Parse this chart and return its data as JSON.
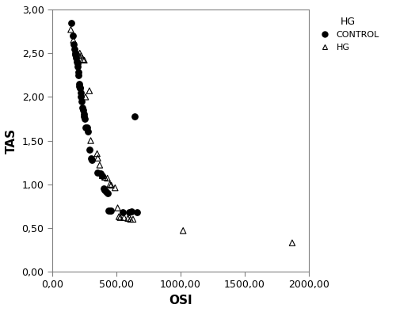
{
  "control_x": [
    150,
    160,
    165,
    175,
    180,
    182,
    185,
    190,
    195,
    200,
    202,
    205,
    210,
    213,
    215,
    218,
    220,
    225,
    230,
    235,
    240,
    245,
    250,
    255,
    260,
    270,
    280,
    290,
    300,
    310,
    350,
    380,
    390,
    400,
    410,
    420,
    430,
    640,
    450,
    460,
    550,
    600,
    620,
    440,
    660
  ],
  "control_y": [
    2.85,
    2.7,
    2.6,
    2.55,
    2.5,
    2.48,
    2.45,
    2.4,
    2.38,
    2.35,
    2.28,
    2.25,
    2.15,
    2.12,
    2.1,
    2.1,
    2.05,
    2.0,
    1.95,
    1.88,
    1.85,
    1.8,
    1.78,
    1.75,
    1.65,
    1.65,
    1.6,
    1.4,
    1.3,
    1.28,
    1.13,
    1.12,
    1.1,
    0.95,
    0.93,
    0.92,
    0.9,
    1.78,
    0.7,
    0.7,
    0.68,
    0.68,
    0.69,
    0.7,
    0.68
  ],
  "hg_x": [
    145,
    165,
    250,
    290,
    205,
    215,
    225,
    240,
    260,
    300,
    350,
    355,
    370,
    390,
    410,
    430,
    450,
    460,
    490,
    510,
    520,
    530,
    560,
    590,
    610,
    630,
    1020,
    1870
  ],
  "hg_y": [
    2.77,
    2.65,
    2.42,
    2.07,
    2.48,
    2.5,
    2.47,
    2.43,
    2.0,
    1.5,
    1.35,
    1.3,
    1.22,
    1.1,
    1.08,
    1.07,
    1.0,
    0.99,
    0.96,
    0.73,
    0.63,
    0.62,
    0.62,
    0.61,
    0.6,
    0.6,
    0.47,
    0.33
  ],
  "xlim": [
    0,
    2000
  ],
  "ylim": [
    0,
    3.0
  ],
  "xticks": [
    0,
    500,
    1000,
    1500,
    2000
  ],
  "yticks": [
    0.0,
    0.5,
    1.0,
    1.5,
    2.0,
    2.5,
    3.0
  ],
  "xlabel": "OSI",
  "ylabel": "TAS",
  "legend_title": "HG",
  "legend_control_label": "CONTROL",
  "legend_hg_label": "HG",
  "control_color": "#000000",
  "hg_color": "#000000",
  "background_color": "#ffffff",
  "marker_size": 28
}
